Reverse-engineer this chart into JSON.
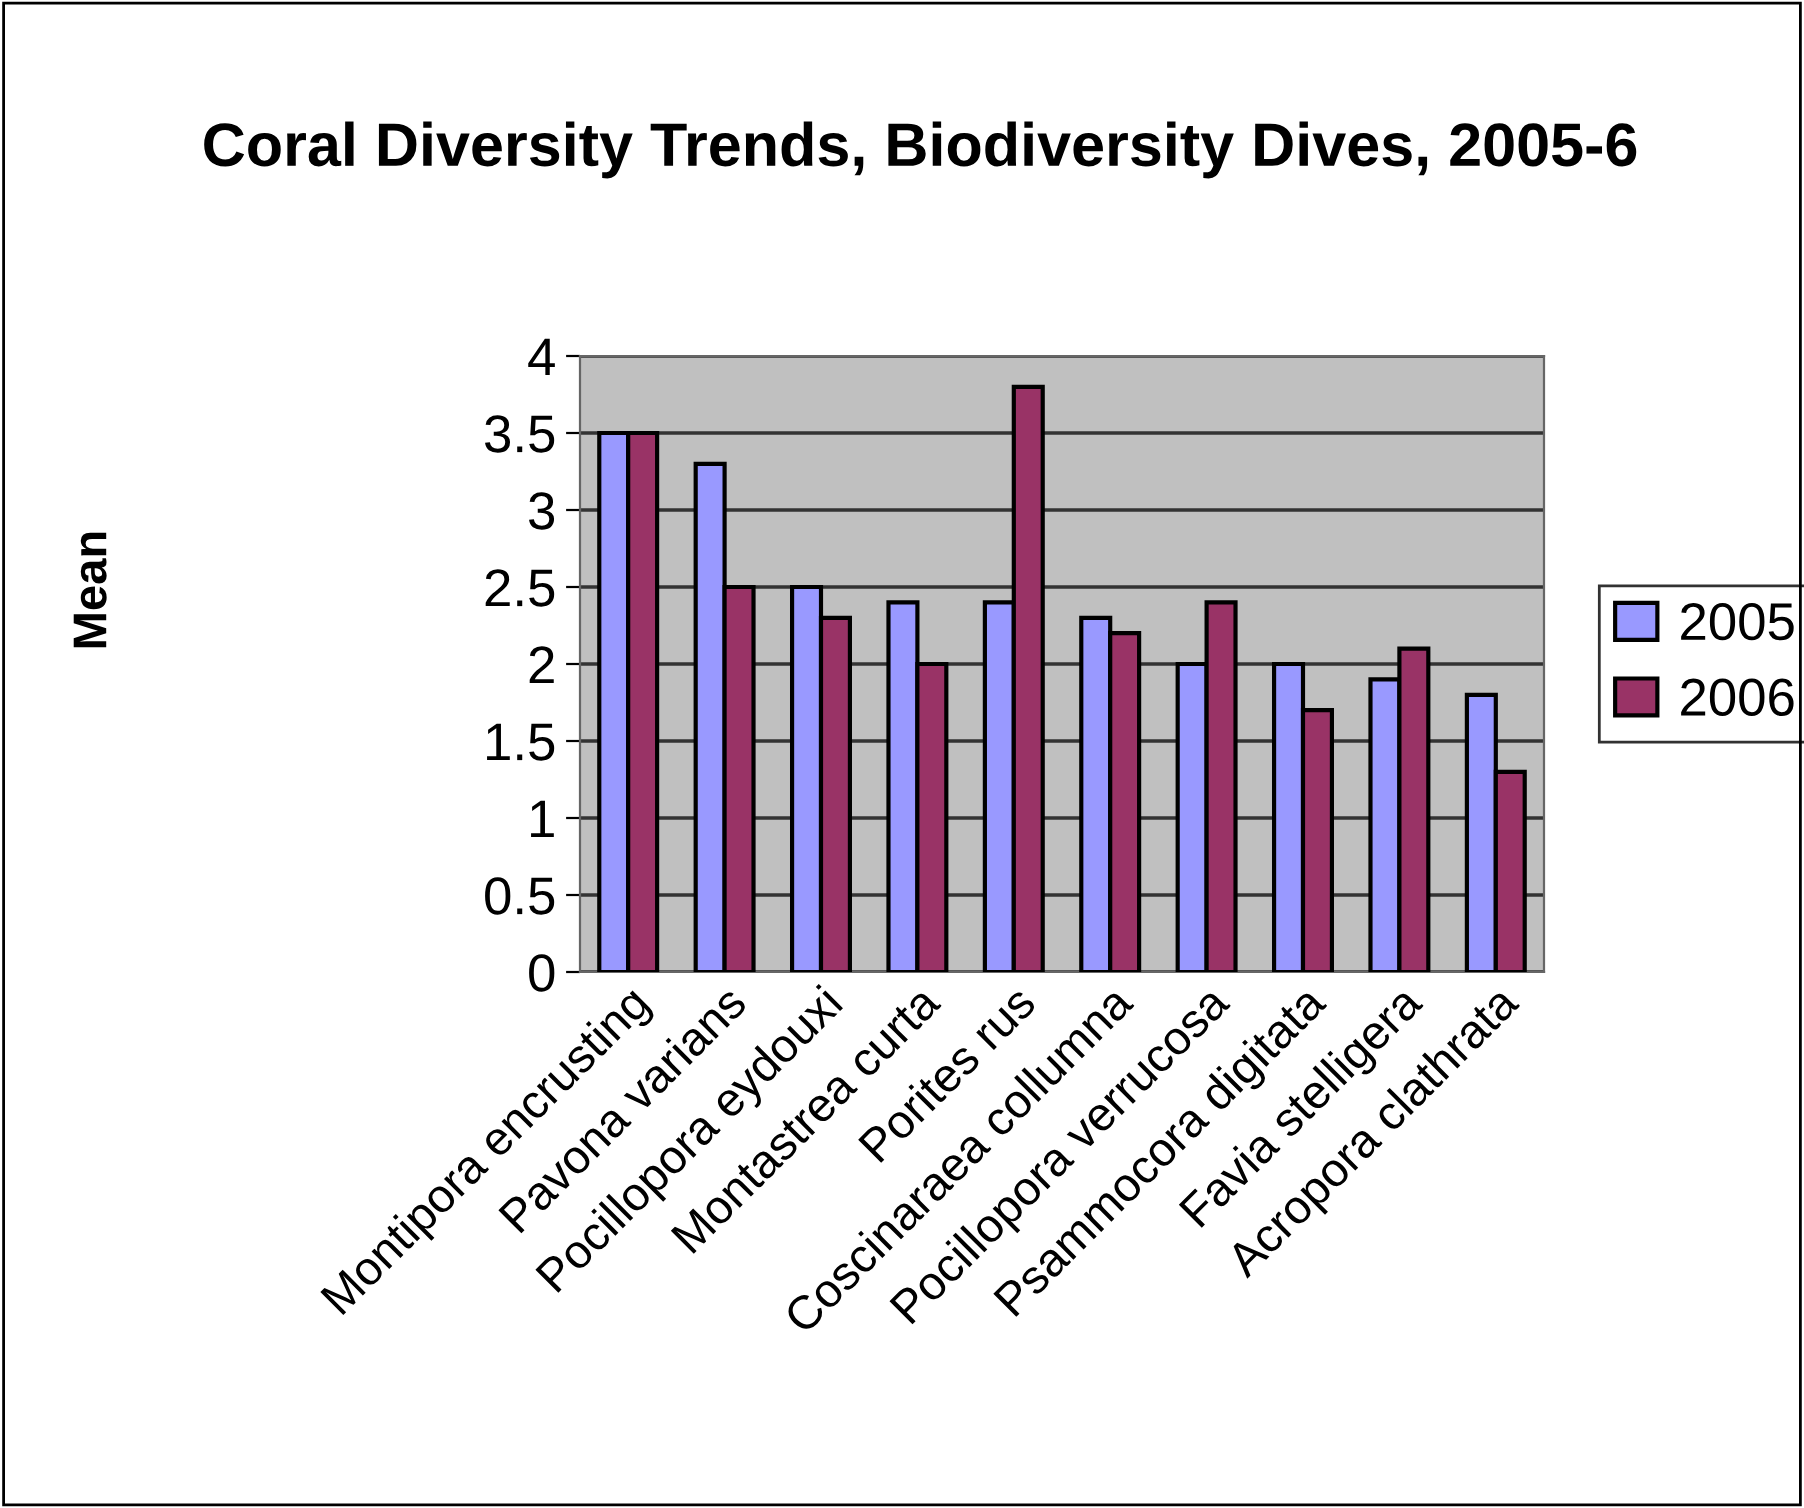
{
  "chart_data": {
    "type": "bar",
    "title": "Coral Diversity Trends, Biodiversity Dives, 2005-6",
    "ylabel": "Mean",
    "categories": [
      "Montipora encrusting",
      "Pavona varians",
      "Pocillopora eydouxi",
      "Montastrea curta",
      "Porites rus",
      "Coscinaraea collumna",
      "Pocillopora verrucosa",
      "Psammocora digitata",
      "Favia stelligera",
      "Acropora clathrata"
    ],
    "series": [
      {
        "name": "2005",
        "color": "#9999ff",
        "values": [
          3.5,
          3.3,
          2.5,
          2.4,
          2.4,
          2.3,
          2.0,
          2.0,
          1.9,
          1.8
        ]
      },
      {
        "name": "2006",
        "color": "#993366",
        "values": [
          3.5,
          2.5,
          2.3,
          2.0,
          3.8,
          2.2,
          2.4,
          1.7,
          2.1,
          1.3
        ]
      }
    ],
    "ylim": [
      0,
      4
    ],
    "yticks": [
      0,
      0.5,
      1,
      1.5,
      2,
      2.5,
      3,
      3.5,
      4
    ],
    "grid": "y",
    "legend": "right"
  }
}
